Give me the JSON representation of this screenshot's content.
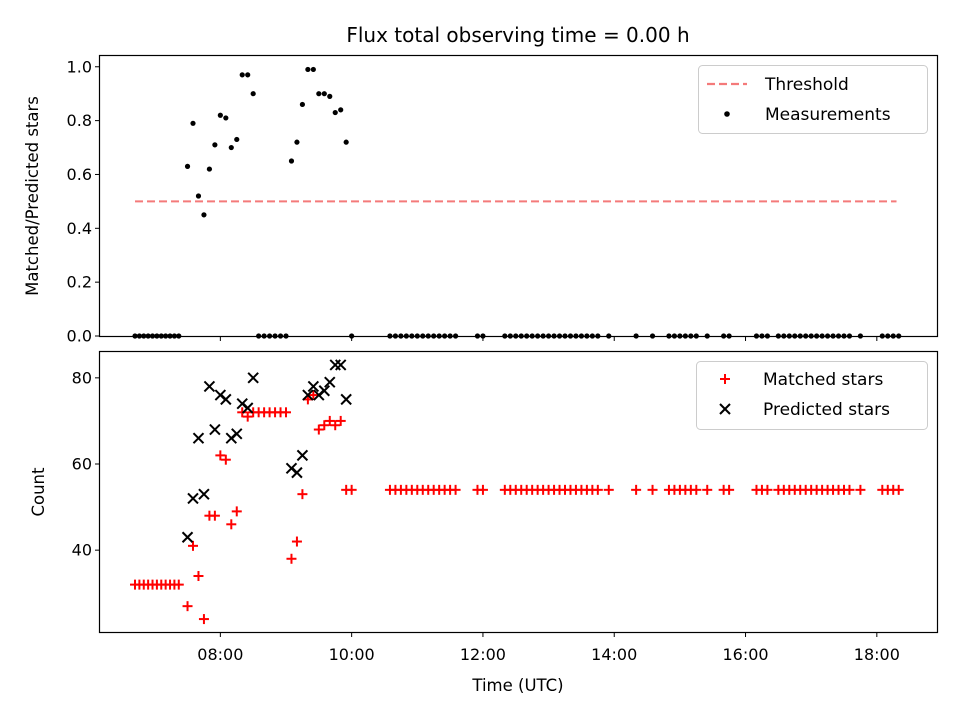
{
  "chart_data": [
    {
      "type": "scatter",
      "title": "Flux total observing time = 0.00 h",
      "xlabel": "",
      "ylabel": "Matched/Predicted stars",
      "xlim": [
        "06:10",
        "18:55"
      ],
      "ylim": [
        0,
        1.04
      ],
      "y_ticks": [
        0.0,
        0.2,
        0.4,
        0.6,
        0.8,
        1.0
      ],
      "y_tick_labels": [
        "0.0",
        "0.2",
        "0.4",
        "0.6",
        "0.8",
        "1.0"
      ],
      "grid": false,
      "legend_position": "top-right",
      "threshold": {
        "name": "Threshold",
        "value": 0.5,
        "x_start": "06:42",
        "x_end": "18:18",
        "color": "#f47a7a",
        "style": "dashed"
      },
      "series": [
        {
          "name": "Measurements",
          "marker": "dot",
          "color": "#000000",
          "points": [
            [
              "06:42",
              0
            ],
            [
              "06:46",
              0
            ],
            [
              "06:50",
              0
            ],
            [
              "06:54",
              0
            ],
            [
              "06:58",
              0
            ],
            [
              "07:02",
              0
            ],
            [
              "07:06",
              0
            ],
            [
              "07:10",
              0
            ],
            [
              "07:14",
              0
            ],
            [
              "07:18",
              0
            ],
            [
              "07:22",
              0
            ],
            [
              "07:30",
              0.63
            ],
            [
              "07:35",
              0.79
            ],
            [
              "07:40",
              0.52
            ],
            [
              "07:45",
              0.45
            ],
            [
              "07:50",
              0.62
            ],
            [
              "07:55",
              0.71
            ],
            [
              "08:00",
              0.82
            ],
            [
              "08:05",
              0.81
            ],
            [
              "08:10",
              0.7
            ],
            [
              "08:15",
              0.73
            ],
            [
              "08:20",
              0.97
            ],
            [
              "08:25",
              0.97
            ],
            [
              "08:30",
              0.9
            ],
            [
              "08:35",
              0
            ],
            [
              "08:40",
              0
            ],
            [
              "08:45",
              0
            ],
            [
              "08:50",
              0
            ],
            [
              "08:55",
              0
            ],
            [
              "09:00",
              0
            ],
            [
              "09:05",
              0.65
            ],
            [
              "09:10",
              0.72
            ],
            [
              "09:15",
              0.86
            ],
            [
              "09:20",
              0.99
            ],
            [
              "09:25",
              0.99
            ],
            [
              "09:30",
              0.9
            ],
            [
              "09:35",
              0.9
            ],
            [
              "09:40",
              0.89
            ],
            [
              "09:45",
              0.83
            ],
            [
              "09:50",
              0.84
            ],
            [
              "09:55",
              0.72
            ],
            [
              "10:00",
              0
            ],
            [
              "10:35",
              0
            ],
            [
              "10:40",
              0
            ],
            [
              "10:45",
              0
            ],
            [
              "10:50",
              0
            ],
            [
              "10:55",
              0
            ],
            [
              "11:00",
              0
            ],
            [
              "11:05",
              0
            ],
            [
              "11:10",
              0
            ],
            [
              "11:15",
              0
            ],
            [
              "11:20",
              0
            ],
            [
              "11:25",
              0
            ],
            [
              "11:30",
              0
            ],
            [
              "11:35",
              0
            ],
            [
              "11:55",
              0
            ],
            [
              "12:00",
              0
            ],
            [
              "12:20",
              0
            ],
            [
              "12:25",
              0
            ],
            [
              "12:30",
              0
            ],
            [
              "12:35",
              0
            ],
            [
              "12:40",
              0
            ],
            [
              "12:45",
              0
            ],
            [
              "12:50",
              0
            ],
            [
              "12:55",
              0
            ],
            [
              "13:00",
              0
            ],
            [
              "13:05",
              0
            ],
            [
              "13:10",
              0
            ],
            [
              "13:15",
              0
            ],
            [
              "13:20",
              0
            ],
            [
              "13:25",
              0
            ],
            [
              "13:30",
              0
            ],
            [
              "13:35",
              0
            ],
            [
              "13:40",
              0
            ],
            [
              "13:45",
              0
            ],
            [
              "13:55",
              0
            ],
            [
              "14:20",
              0
            ],
            [
              "14:35",
              0
            ],
            [
              "14:50",
              0
            ],
            [
              "14:55",
              0
            ],
            [
              "15:00",
              0
            ],
            [
              "15:05",
              0
            ],
            [
              "15:10",
              0
            ],
            [
              "15:15",
              0
            ],
            [
              "15:25",
              0
            ],
            [
              "15:40",
              0
            ],
            [
              "15:45",
              0
            ],
            [
              "16:10",
              0
            ],
            [
              "16:15",
              0
            ],
            [
              "16:20",
              0
            ],
            [
              "16:30",
              0
            ],
            [
              "16:35",
              0
            ],
            [
              "16:40",
              0
            ],
            [
              "16:45",
              0
            ],
            [
              "16:50",
              0
            ],
            [
              "16:55",
              0
            ],
            [
              "17:00",
              0
            ],
            [
              "17:05",
              0
            ],
            [
              "17:10",
              0
            ],
            [
              "17:15",
              0
            ],
            [
              "17:20",
              0
            ],
            [
              "17:25",
              0
            ],
            [
              "17:30",
              0
            ],
            [
              "17:35",
              0
            ],
            [
              "17:45",
              0
            ],
            [
              "18:05",
              0
            ],
            [
              "18:10",
              0
            ],
            [
              "18:15",
              0
            ],
            [
              "18:20",
              0
            ]
          ]
        }
      ]
    },
    {
      "type": "scatter",
      "title": "",
      "xlabel": "Time (UTC)",
      "ylabel": "Count",
      "xlim": [
        "06:10",
        "18:55"
      ],
      "ylim": [
        21,
        86
      ],
      "x_ticks": [
        "08:00",
        "10:00",
        "12:00",
        "14:00",
        "16:00",
        "18:00"
      ],
      "y_ticks": [
        40,
        60,
        80
      ],
      "y_tick_labels": [
        "40",
        "60",
        "80"
      ],
      "grid": false,
      "legend_position": "top-right",
      "series": [
        {
          "name": "Matched stars",
          "marker": "plus",
          "color": "#ff0000",
          "points": [
            [
              "06:42",
              32
            ],
            [
              "06:46",
              32
            ],
            [
              "06:50",
              32
            ],
            [
              "06:54",
              32
            ],
            [
              "06:58",
              32
            ],
            [
              "07:02",
              32
            ],
            [
              "07:06",
              32
            ],
            [
              "07:10",
              32
            ],
            [
              "07:14",
              32
            ],
            [
              "07:18",
              32
            ],
            [
              "07:22",
              32
            ],
            [
              "07:30",
              27
            ],
            [
              "07:35",
              41
            ],
            [
              "07:40",
              34
            ],
            [
              "07:45",
              24
            ],
            [
              "07:50",
              48
            ],
            [
              "07:55",
              48
            ],
            [
              "08:00",
              62
            ],
            [
              "08:05",
              61
            ],
            [
              "08:10",
              46
            ],
            [
              "08:15",
              49
            ],
            [
              "08:20",
              72
            ],
            [
              "08:25",
              71
            ],
            [
              "08:30",
              72
            ],
            [
              "08:35",
              72
            ],
            [
              "08:40",
              72
            ],
            [
              "08:45",
              72
            ],
            [
              "08:50",
              72
            ],
            [
              "08:55",
              72
            ],
            [
              "09:00",
              72
            ],
            [
              "09:05",
              38
            ],
            [
              "09:10",
              42
            ],
            [
              "09:15",
              53
            ],
            [
              "09:20",
              75
            ],
            [
              "09:25",
              76
            ],
            [
              "09:30",
              68
            ],
            [
              "09:35",
              69
            ],
            [
              "09:40",
              70
            ],
            [
              "09:45",
              69
            ],
            [
              "09:50",
              70
            ],
            [
              "09:55",
              54
            ],
            [
              "10:00",
              54
            ],
            [
              "10:35",
              54
            ],
            [
              "10:40",
              54
            ],
            [
              "10:45",
              54
            ],
            [
              "10:50",
              54
            ],
            [
              "10:55",
              54
            ],
            [
              "11:00",
              54
            ],
            [
              "11:05",
              54
            ],
            [
              "11:10",
              54
            ],
            [
              "11:15",
              54
            ],
            [
              "11:20",
              54
            ],
            [
              "11:25",
              54
            ],
            [
              "11:30",
              54
            ],
            [
              "11:35",
              54
            ],
            [
              "11:55",
              54
            ],
            [
              "12:00",
              54
            ],
            [
              "12:20",
              54
            ],
            [
              "12:25",
              54
            ],
            [
              "12:30",
              54
            ],
            [
              "12:35",
              54
            ],
            [
              "12:40",
              54
            ],
            [
              "12:45",
              54
            ],
            [
              "12:50",
              54
            ],
            [
              "12:55",
              54
            ],
            [
              "13:00",
              54
            ],
            [
              "13:05",
              54
            ],
            [
              "13:10",
              54
            ],
            [
              "13:15",
              54
            ],
            [
              "13:20",
              54
            ],
            [
              "13:25",
              54
            ],
            [
              "13:30",
              54
            ],
            [
              "13:35",
              54
            ],
            [
              "13:40",
              54
            ],
            [
              "13:45",
              54
            ],
            [
              "13:55",
              54
            ],
            [
              "14:20",
              54
            ],
            [
              "14:35",
              54
            ],
            [
              "14:50",
              54
            ],
            [
              "14:55",
              54
            ],
            [
              "15:00",
              54
            ],
            [
              "15:05",
              54
            ],
            [
              "15:10",
              54
            ],
            [
              "15:15",
              54
            ],
            [
              "15:25",
              54
            ],
            [
              "15:40",
              54
            ],
            [
              "15:45",
              54
            ],
            [
              "16:10",
              54
            ],
            [
              "16:15",
              54
            ],
            [
              "16:20",
              54
            ],
            [
              "16:30",
              54
            ],
            [
              "16:35",
              54
            ],
            [
              "16:40",
              54
            ],
            [
              "16:45",
              54
            ],
            [
              "16:50",
              54
            ],
            [
              "16:55",
              54
            ],
            [
              "17:00",
              54
            ],
            [
              "17:05",
              54
            ],
            [
              "17:10",
              54
            ],
            [
              "17:15",
              54
            ],
            [
              "17:20",
              54
            ],
            [
              "17:25",
              54
            ],
            [
              "17:30",
              54
            ],
            [
              "17:35",
              54
            ],
            [
              "17:45",
              54
            ],
            [
              "18:05",
              54
            ],
            [
              "18:10",
              54
            ],
            [
              "18:15",
              54
            ],
            [
              "18:20",
              54
            ]
          ]
        },
        {
          "name": "Predicted stars",
          "marker": "x",
          "color": "#000000",
          "points": [
            [
              "07:30",
              43
            ],
            [
              "07:35",
              52
            ],
            [
              "07:40",
              66
            ],
            [
              "07:45",
              53
            ],
            [
              "07:50",
              78
            ],
            [
              "07:55",
              68
            ],
            [
              "08:00",
              76
            ],
            [
              "08:05",
              75
            ],
            [
              "08:10",
              66
            ],
            [
              "08:15",
              67
            ],
            [
              "08:20",
              74
            ],
            [
              "08:25",
              73
            ],
            [
              "08:30",
              80
            ],
            [
              "09:05",
              59
            ],
            [
              "09:10",
              58
            ],
            [
              "09:15",
              62
            ],
            [
              "09:20",
              76
            ],
            [
              "09:25",
              78
            ],
            [
              "09:30",
              76
            ],
            [
              "09:35",
              77
            ],
            [
              "09:40",
              79
            ],
            [
              "09:45",
              83
            ],
            [
              "09:50",
              83
            ],
            [
              "09:55",
              75
            ]
          ]
        }
      ]
    }
  ]
}
